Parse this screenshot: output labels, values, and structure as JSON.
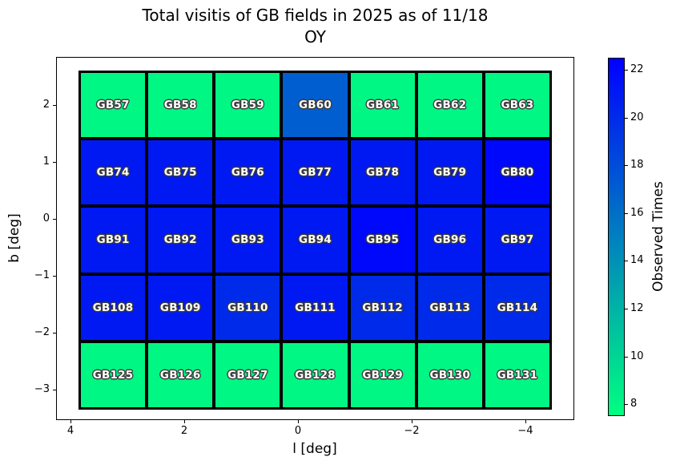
{
  "title": {
    "line1": "Total visitis of GB fields in 2025 as of 11/18",
    "line2": "OY"
  },
  "x_axis": {
    "label": "l [deg]",
    "ticks": [
      {
        "label": "4",
        "value": 4
      },
      {
        "label": "2",
        "value": 2
      },
      {
        "label": "0",
        "value": 0
      },
      {
        "label": "−2",
        "value": -2
      },
      {
        "label": "−4",
        "value": -4
      }
    ]
  },
  "y_axis": {
    "label": "b [deg]",
    "ticks": [
      {
        "label": "2",
        "value": 2
      },
      {
        "label": "1",
        "value": 1
      },
      {
        "label": "0",
        "value": 0
      },
      {
        "label": "−1",
        "value": -1
      },
      {
        "label": "−2",
        "value": -2
      },
      {
        "label": "−3",
        "value": -3
      }
    ]
  },
  "colorbar": {
    "label": "Observed Times",
    "vmin": 7.5,
    "vmax": 22.5,
    "colormap": "winter_r",
    "top_color": "#0000ff",
    "bottom_color": "#00ff80",
    "ticks": [
      {
        "label": "22",
        "value": 22
      },
      {
        "label": "20",
        "value": 20
      },
      {
        "label": "18",
        "value": 18
      },
      {
        "label": "16",
        "value": 16
      },
      {
        "label": "14",
        "value": 14
      },
      {
        "label": "12",
        "value": 12
      },
      {
        "label": "10",
        "value": 10
      },
      {
        "label": "8",
        "value": 8
      }
    ]
  },
  "chart_data": {
    "type": "heatmap",
    "title": "Total visitis of GB fields in 2025 as of 11/18 OY",
    "xlabel": "l [deg]",
    "ylabel": "b [deg]",
    "colorbar_label": "Observed Times",
    "colormap": "winter_r",
    "vmin": 7.5,
    "vmax": 22.5,
    "x_range": [
      4.5,
      -4.9
    ],
    "y_range": [
      2.9,
      -3.5
    ],
    "x_axis_inverted": true,
    "cell_size_deg": 1.2,
    "rows": [
      {
        "b_center": 2.0,
        "labels": [
          "GB57",
          "GB58",
          "GB59",
          "GB60",
          "GB61",
          "GB62",
          "GB63"
        ],
        "values": [
          8,
          8,
          8,
          17,
          8,
          8,
          8
        ]
      },
      {
        "b_center": 0.8,
        "labels": [
          "GB74",
          "GB75",
          "GB76",
          "GB77",
          "GB78",
          "GB79",
          "GB80"
        ],
        "values": [
          21,
          21,
          21,
          21,
          21,
          21,
          22
        ]
      },
      {
        "b_center": -0.4,
        "labels": [
          "GB91",
          "GB92",
          "GB93",
          "GB94",
          "GB95",
          "GB96",
          "GB97"
        ],
        "values": [
          21,
          21,
          21,
          21,
          22,
          21,
          21
        ]
      },
      {
        "b_center": -1.6,
        "labels": [
          "GB108",
          "GB109",
          "GB110",
          "GB111",
          "GB112",
          "GB113",
          "GB114"
        ],
        "values": [
          21,
          21,
          20,
          21,
          20,
          20,
          20
        ]
      },
      {
        "b_center": -2.8,
        "labels": [
          "GB125",
          "GB126",
          "GB127",
          "GB128",
          "GB129",
          "GB130",
          "GB131"
        ],
        "values": [
          8,
          8,
          8,
          8,
          8,
          8,
          8
        ]
      }
    ],
    "l_centers": [
      3.3,
      2.1,
      0.9,
      -0.3,
      -1.5,
      -2.7,
      -3.9
    ]
  }
}
